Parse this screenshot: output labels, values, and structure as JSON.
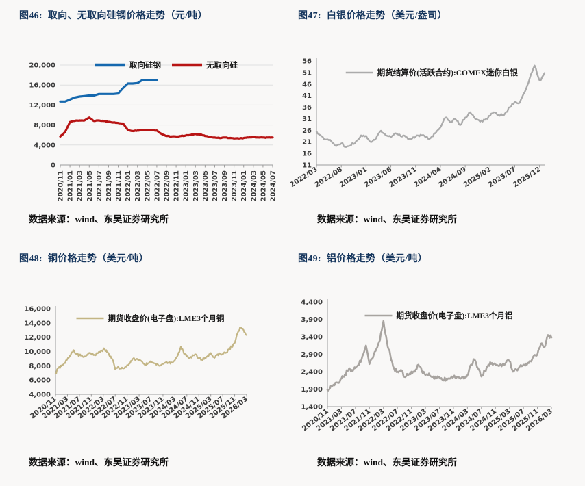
{
  "page": {
    "background": "#f9f8f7",
    "title_color": "#17375e"
  },
  "source_label": "数据来源：wind、东吴证券研究所",
  "chart_data": [
    {
      "figure_no": "图46:",
      "title": "取向、无取向硅钢价格走势（元/吨）",
      "type": "line",
      "unit": "元/吨",
      "source": "数据来源：wind、东吴证券研究所",
      "plot": {
        "ylim": [
          0,
          20000
        ],
        "yticks": [
          0,
          4000,
          8000,
          12000,
          16000,
          20000
        ],
        "ytick_labels": [
          "0",
          "4,000",
          "8,000",
          "12,000",
          "16,000",
          "20,000"
        ],
        "xtick_labels": [
          "2020/11",
          "2021/01",
          "2021/03",
          "2021/05",
          "2021/07",
          "2021/09",
          "2021/11",
          "2022/01",
          "2022/03",
          "2022/05",
          "2022/07",
          "2022/09",
          "2022/11",
          "2023/01",
          "2023/03",
          "2023/05",
          "2023/07",
          "2023/09",
          "2023/11",
          "2024/01",
          "2024/03",
          "2024/05",
          "2024/07"
        ],
        "grid": true,
        "y_axis_line": false,
        "legend": {
          "dy": 0,
          "items": [
            {
              "label": "取向硅钢",
              "color": "#1568ae"
            },
            {
              "label": "无取向硅",
              "color": "#b81414"
            }
          ]
        },
        "series": [
          {
            "name": "取向硅钢",
            "color": "#1568ae",
            "start": "2020/11",
            "end": "2022/07",
            "frequency": "monthly",
            "x0": 0,
            "x1": 0.4545,
            "values": [
              12700,
              12700,
              13100,
              13500,
              13700,
              13800,
              13900,
              13900,
              14200,
              14200,
              14200,
              14200,
              14300,
              15400,
              16300,
              16300,
              16400,
              17000,
              17000,
              17000,
              17000
            ]
          },
          {
            "name": "无取向硅",
            "color": "#b81414",
            "start": "2020/11",
            "end": "2024/07",
            "frequency": "monthly",
            "x0": 0,
            "x1": 1,
            "values": [
              5700,
              6600,
              8600,
              8800,
              8900,
              8900,
              9500,
              8800,
              8900,
              8800,
              8600,
              8500,
              8400,
              8300,
              7000,
              6800,
              6900,
              7000,
              7000,
              7000,
              6900,
              6200,
              5800,
              5700,
              5700,
              5800,
              5900,
              6000,
              6200,
              6100,
              5800,
              5600,
              5500,
              5400,
              5500,
              5400,
              5300,
              5300,
              5400,
              5500,
              5600,
              5500,
              5500,
              5500,
              5500
            ]
          }
        ]
      }
    },
    {
      "figure_no": "图47:",
      "title": "白银价格走势（美元/盎司）",
      "type": "line",
      "unit": "美元/盎司",
      "source": "数据来源：wind、东吴证券研究所",
      "plot": {
        "ylim": [
          11,
          56
        ],
        "yticks": [
          11,
          16,
          21,
          26,
          31,
          36,
          41,
          46,
          51,
          56
        ],
        "ytick_labels": [
          "11",
          "16",
          "21",
          "26",
          "31",
          "36",
          "41",
          "46",
          "51",
          "56"
        ],
        "xtick_labels": [
          "2022/03",
          "2022/08",
          "2023/01",
          "2023/06",
          "2023/11",
          "2024/04",
          "2024/09",
          "2025/02",
          "2025/07",
          "2025/12"
        ],
        "grid": false,
        "y_axis_line": true,
        "legend": {
          "dy": 17,
          "items": [
            {
              "label": "期货结算价(活跃合约):COMEX迷你白银",
              "color": "#ababab"
            }
          ]
        },
        "series": [
          {
            "name": "期货结算价(活跃合约):COMEX迷你白银",
            "color": "#ababab",
            "start": "2022/03",
            "end": "2026/01",
            "frequency": "monthly",
            "x0": 0,
            "x1": 1,
            "values": [
              25.5,
              23.5,
              22.0,
              21.2,
              19.2,
              20.3,
              18.8,
              19.6,
              21.3,
              23.8,
              23.6,
              20.9,
              22.5,
              25.8,
              23.8,
              22.9,
              24.7,
              23.4,
              23.2,
              22.1,
              23.3,
              24.1,
              22.9,
              22.6,
              24.7,
              27.3,
              31.5,
              29.4,
              30.9,
              28.3,
              31.5,
              33.8,
              31.0,
              29.7,
              30.5,
              32.3,
              33.7,
              32.3,
              33.2,
              36.0,
              38.4,
              37.9,
              42.5,
              48.5,
              54.0,
              47.5,
              50.8
            ]
          }
        ]
      }
    },
    {
      "figure_no": "图48:",
      "title": "铜价格走势（美元/吨）",
      "type": "line",
      "unit": "美元/吨",
      "source": "数据来源：wind、东吴证券研究所",
      "plot": {
        "ylim": [
          4000,
          16000
        ],
        "yticks": [
          4000,
          6000,
          8000,
          10000,
          12000,
          14000,
          16000
        ],
        "ytick_labels": [
          "4,000",
          "6,000",
          "8,000",
          "10,000",
          "12,000",
          "14,000",
          "16,000"
        ],
        "xtick_labels": [
          "2020/11",
          "2021/03",
          "2021/07",
          "2021/11",
          "2022/03",
          "2022/07",
          "2022/11",
          "2023/03",
          "2023/07",
          "2023/11",
          "2024/03",
          "2024/07",
          "2024/11",
          "2025/03",
          "2025/07",
          "2025/11",
          "2026/03"
        ],
        "grid": false,
        "y_axis_line": true,
        "legend": {
          "dy": 14,
          "items": [
            {
              "label": "期货收盘价(电子盘):LME3个月铜",
              "color": "#c3b584"
            }
          ]
        },
        "series": [
          {
            "name": "期货收盘价(电子盘):LME3个月铜",
            "color": "#c3b584",
            "start": "2020/11",
            "end": "2026/03",
            "frequency": "monthly",
            "x0": 0,
            "x1": 1,
            "values": [
              6900,
              7700,
              7950,
              8400,
              8950,
              9400,
              10200,
              9600,
              9450,
              9350,
              9300,
              9800,
              9650,
              9550,
              9750,
              9900,
              10300,
              10200,
              9450,
              8950,
              7500,
              7900,
              7600,
              7650,
              8100,
              8400,
              9000,
              8900,
              8850,
              8600,
              8100,
              8350,
              8500,
              8350,
              8250,
              8000,
              8250,
              8500,
              8400,
              8450,
              8800,
              9500,
              10700,
              9700,
              9300,
              9100,
              9500,
              9600,
              9000,
              8900,
              9100,
              9400,
              9800,
              9200,
              9500,
              9700,
              9650,
              9800,
              10200,
              10700,
              11200,
              12600,
              13400,
              13000,
              12300
            ]
          }
        ]
      }
    },
    {
      "figure_no": "图49:",
      "title": "铝价格走势（美元/吨）",
      "type": "line",
      "unit": "美元/吨",
      "source": "数据来源：wind、东吴证券研究所",
      "plot": {
        "ylim": [
          1400,
          4400
        ],
        "yticks": [
          1400,
          1900,
          2400,
          2900,
          3400,
          3900,
          4400
        ],
        "ytick_labels": [
          "1,400",
          "1,900",
          "2,400",
          "2,900",
          "3,400",
          "3,900",
          "4,400"
        ],
        "xtick_labels": [
          "2020/11",
          "2021/03",
          "2021/07",
          "2021/11",
          "2022/03",
          "2022/07",
          "2022/11",
          "2023/03",
          "2023/07",
          "2023/11",
          "2024/03",
          "2024/07",
          "2024/11",
          "2025/03",
          "2025/07",
          "2025/11",
          "2026/03"
        ],
        "grid": false,
        "y_axis_line": true,
        "legend": {
          "dy": 20,
          "items": [
            {
              "label": "期货收盘价(电子盘):LME3个月铝",
              "color": "#a8a4a0"
            }
          ]
        },
        "series": [
          {
            "name": "期货收盘价(电子盘):LME3个月铝",
            "color": "#a8a4a0",
            "start": "2020/11",
            "end": "2026/03",
            "frequency": "monthly",
            "x0": 0,
            "x1": 1,
            "values": [
              1880,
              2000,
              2010,
              2080,
              2200,
              2320,
              2450,
              2450,
              2500,
              2600,
              2850,
              3150,
              2620,
              2800,
              3050,
              3300,
              3850,
              3250,
              2850,
              2500,
              2400,
              2450,
              2250,
              2300,
              2400,
              2400,
              2600,
              2400,
              2300,
              2350,
              2250,
              2200,
              2250,
              2150,
              2200,
              2200,
              2250,
              2250,
              2200,
              2200,
              2300,
              2600,
              2750,
              2500,
              2260,
              2420,
              2600,
              2650,
              2600,
              2560,
              2600,
              2660,
              2700,
              2400,
              2460,
              2560,
              2600,
              2600,
              2700,
              2860,
              2900,
              3200,
              3100,
              3450,
              3380
            ]
          }
        ]
      }
    }
  ]
}
